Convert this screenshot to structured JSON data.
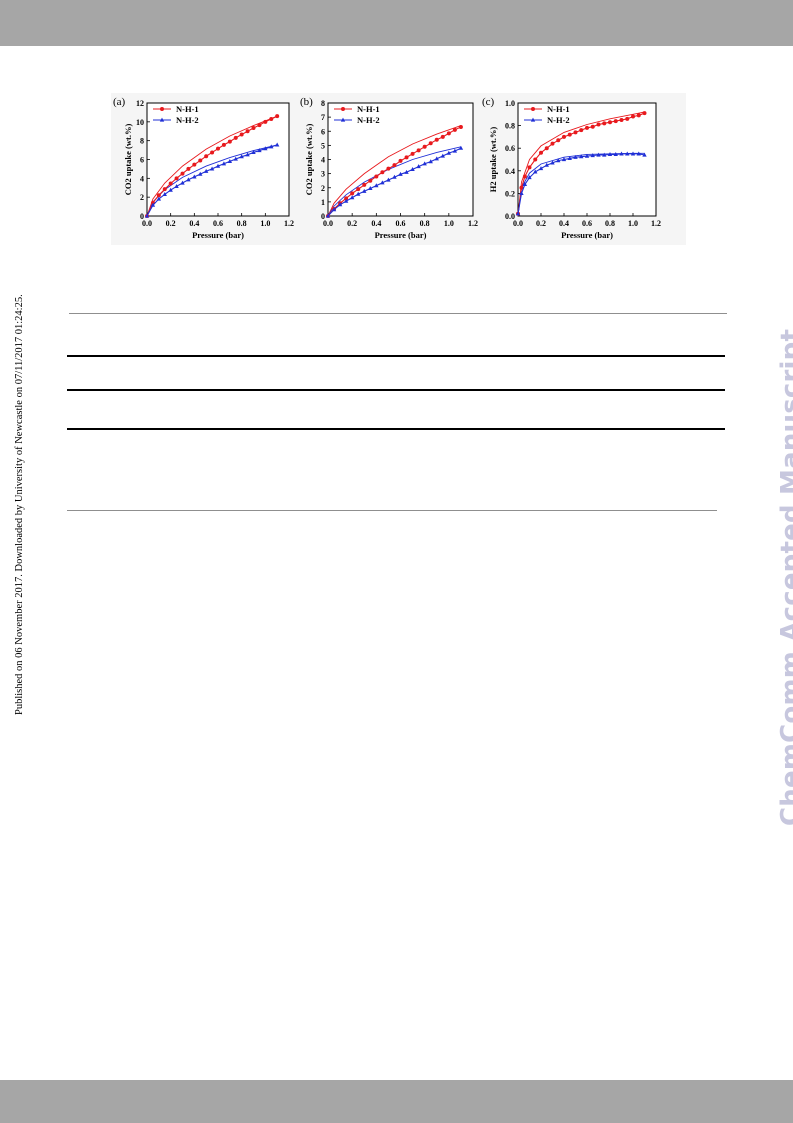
{
  "page": {
    "side_note": "Published on 06 November 2017. Downloaded by University of Newcastle on 07/11/2017 01:24:25.",
    "watermark": "ChemComm Accepted Manuscript",
    "colors": {
      "band": "#a6a6a6",
      "watermark": "#c7c7de",
      "series_1": "#e8191d",
      "series_2": "#1f2fd6"
    }
  },
  "chart_data": [
    {
      "panel_label": "(a)",
      "type": "scatter",
      "xlabel": "Pressure (bar)",
      "ylabel": "CO2 uptake (wt.%)",
      "xlim": [
        0,
        1.2
      ],
      "ylim": [
        0,
        12
      ],
      "xticks": [
        "0.0",
        "0.2",
        "0.4",
        "0.6",
        "0.8",
        "1.0",
        "1.2"
      ],
      "yticks": [
        "0",
        "2",
        "4",
        "6",
        "8",
        "10",
        "12"
      ],
      "legend_position": "top-left",
      "series": [
        {
          "name": "N-H-1",
          "color": "#e8191d",
          "marker": "circle",
          "x": [
            0.0,
            0.05,
            0.1,
            0.15,
            0.2,
            0.25,
            0.3,
            0.35,
            0.4,
            0.45,
            0.5,
            0.55,
            0.6,
            0.65,
            0.7,
            0.75,
            0.8,
            0.85,
            0.9,
            0.95,
            1.0,
            1.05,
            1.1
          ],
          "y": [
            0.0,
            1.4,
            2.2,
            2.85,
            3.45,
            4.0,
            4.5,
            5.0,
            5.45,
            5.9,
            6.35,
            6.75,
            7.15,
            7.55,
            7.9,
            8.3,
            8.65,
            9.0,
            9.35,
            9.65,
            10.0,
            10.3,
            10.6
          ]
        },
        {
          "name": "N-H-2",
          "color": "#1f2fd6",
          "marker": "triangle",
          "x": [
            0.0,
            0.05,
            0.1,
            0.15,
            0.2,
            0.25,
            0.3,
            0.35,
            0.4,
            0.45,
            0.5,
            0.55,
            0.6,
            0.65,
            0.7,
            0.75,
            0.8,
            0.85,
            0.9,
            0.95,
            1.0,
            1.05,
            1.1
          ],
          "y": [
            0.0,
            1.15,
            1.8,
            2.3,
            2.75,
            3.15,
            3.5,
            3.85,
            4.15,
            4.45,
            4.75,
            5.0,
            5.3,
            5.55,
            5.8,
            6.05,
            6.3,
            6.5,
            6.75,
            6.95,
            7.15,
            7.35,
            7.55
          ]
        }
      ],
      "fit_curves": [
        {
          "color": "#e8191d",
          "x": [
            0.0,
            0.05,
            0.15,
            0.3,
            0.5,
            0.7,
            0.9,
            1.1
          ],
          "y": [
            0.0,
            1.8,
            3.5,
            5.3,
            7.1,
            8.5,
            9.6,
            10.6
          ]
        },
        {
          "color": "#1f2fd6",
          "x": [
            0.0,
            0.05,
            0.15,
            0.3,
            0.5,
            0.7,
            0.9,
            1.1
          ],
          "y": [
            0.0,
            1.5,
            2.8,
            4.1,
            5.3,
            6.2,
            6.95,
            7.55
          ]
        }
      ]
    },
    {
      "panel_label": "(b)",
      "type": "scatter",
      "xlabel": "Pressure (bar)",
      "ylabel": "CO2 uptake (wt.%)",
      "xlim": [
        0,
        1.2
      ],
      "ylim": [
        0,
        8
      ],
      "xticks": [
        "0.0",
        "0.2",
        "0.4",
        "0.6",
        "0.8",
        "1.0",
        "1.2"
      ],
      "yticks": [
        "0",
        "1",
        "2",
        "3",
        "4",
        "5",
        "6",
        "7",
        "8"
      ],
      "legend_position": "top-left",
      "series": [
        {
          "name": "N-H-1",
          "color": "#e8191d",
          "marker": "circle",
          "x": [
            0.0,
            0.05,
            0.1,
            0.15,
            0.2,
            0.25,
            0.3,
            0.35,
            0.4,
            0.45,
            0.5,
            0.55,
            0.6,
            0.65,
            0.7,
            0.75,
            0.8,
            0.85,
            0.9,
            0.95,
            1.0,
            1.05,
            1.1
          ],
          "y": [
            0.0,
            0.5,
            0.9,
            1.25,
            1.6,
            1.9,
            2.2,
            2.5,
            2.8,
            3.1,
            3.35,
            3.6,
            3.9,
            4.15,
            4.4,
            4.65,
            4.9,
            5.15,
            5.4,
            5.6,
            5.85,
            6.1,
            6.3
          ]
        },
        {
          "name": "N-H-2",
          "color": "#1f2fd6",
          "marker": "triangle",
          "x": [
            0.0,
            0.05,
            0.1,
            0.15,
            0.2,
            0.25,
            0.3,
            0.35,
            0.4,
            0.45,
            0.5,
            0.55,
            0.6,
            0.65,
            0.7,
            0.75,
            0.8,
            0.85,
            0.9,
            0.95,
            1.0,
            1.05,
            1.1
          ],
          "y": [
            0.0,
            0.45,
            0.8,
            1.05,
            1.3,
            1.55,
            1.75,
            1.95,
            2.15,
            2.35,
            2.55,
            2.75,
            2.95,
            3.1,
            3.3,
            3.5,
            3.7,
            3.85,
            4.05,
            4.25,
            4.45,
            4.6,
            4.8
          ]
        }
      ],
      "fit_curves": [
        {
          "color": "#e8191d",
          "x": [
            0.0,
            0.05,
            0.15,
            0.3,
            0.5,
            0.7,
            0.9,
            1.1
          ],
          "y": [
            0.0,
            0.9,
            1.9,
            3.0,
            4.2,
            5.1,
            5.8,
            6.4
          ]
        },
        {
          "color": "#1f2fd6",
          "x": [
            0.0,
            0.05,
            0.15,
            0.3,
            0.5,
            0.7,
            0.9,
            1.1
          ],
          "y": [
            0.0,
            0.7,
            1.5,
            2.4,
            3.3,
            4.0,
            4.5,
            4.9
          ]
        }
      ]
    },
    {
      "panel_label": "(c)",
      "type": "scatter",
      "xlabel": "Pressure (bar)",
      "ylabel": "H2 uptake (wt.%)",
      "xlim": [
        0,
        1.2
      ],
      "ylim": [
        0,
        1.0
      ],
      "xticks": [
        "0.0",
        "0.2",
        "0.4",
        "0.6",
        "0.8",
        "1.0",
        "1.2"
      ],
      "yticks": [
        "0.0",
        "0.2",
        "0.4",
        "0.6",
        "0.8",
        "1.0"
      ],
      "legend_position": "top-left",
      "series": [
        {
          "name": "N-H-1",
          "color": "#e8191d",
          "marker": "circle",
          "x": [
            0.0,
            0.03,
            0.06,
            0.1,
            0.15,
            0.2,
            0.25,
            0.3,
            0.35,
            0.4,
            0.45,
            0.5,
            0.55,
            0.6,
            0.65,
            0.7,
            0.75,
            0.8,
            0.85,
            0.9,
            0.95,
            1.0,
            1.05,
            1.1
          ],
          "y": [
            0.02,
            0.25,
            0.35,
            0.43,
            0.5,
            0.56,
            0.6,
            0.64,
            0.67,
            0.7,
            0.72,
            0.74,
            0.76,
            0.78,
            0.79,
            0.81,
            0.82,
            0.83,
            0.84,
            0.85,
            0.86,
            0.88,
            0.89,
            0.91
          ]
        },
        {
          "name": "N-H-2",
          "color": "#1f2fd6",
          "marker": "triangle",
          "x": [
            0.0,
            0.03,
            0.06,
            0.1,
            0.15,
            0.2,
            0.25,
            0.3,
            0.35,
            0.4,
            0.45,
            0.5,
            0.55,
            0.6,
            0.65,
            0.7,
            0.75,
            0.8,
            0.85,
            0.9,
            0.95,
            1.0,
            1.05,
            1.1
          ],
          "y": [
            0.02,
            0.2,
            0.28,
            0.34,
            0.39,
            0.42,
            0.45,
            0.47,
            0.49,
            0.5,
            0.51,
            0.52,
            0.525,
            0.53,
            0.535,
            0.54,
            0.54,
            0.545,
            0.545,
            0.55,
            0.55,
            0.55,
            0.55,
            0.54
          ]
        }
      ],
      "fit_curves": [
        {
          "color": "#e8191d",
          "x": [
            0.0,
            0.03,
            0.1,
            0.2,
            0.4,
            0.6,
            0.8,
            1.0,
            1.1
          ],
          "y": [
            0.0,
            0.3,
            0.5,
            0.62,
            0.74,
            0.81,
            0.86,
            0.9,
            0.92
          ]
        },
        {
          "color": "#1f2fd6",
          "x": [
            0.0,
            0.03,
            0.1,
            0.2,
            0.4,
            0.6,
            0.8,
            1.0,
            1.1
          ],
          "y": [
            0.0,
            0.25,
            0.38,
            0.46,
            0.52,
            0.545,
            0.55,
            0.555,
            0.555
          ]
        }
      ]
    }
  ]
}
